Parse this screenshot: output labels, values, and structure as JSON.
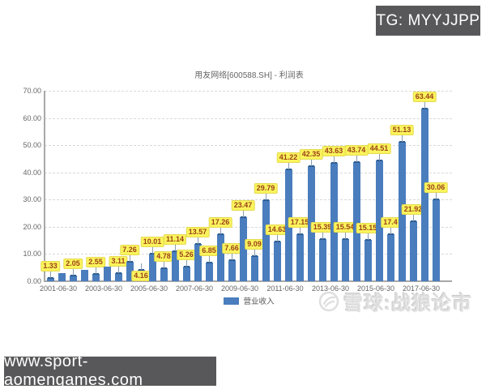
{
  "overlays": {
    "top_right_badge": "TG: MYYJJPP",
    "bottom_left_badge": "www.sport-aomengames.com",
    "watermark_text": "雪球:战狼论市"
  },
  "chart_data": {
    "type": "bar",
    "title": "用友网络[600588.SH] - 利润表",
    "series_name": "营业收入",
    "legend": [
      "营业收入"
    ],
    "legend_position": "bottom-center",
    "grid": "horizontal-dashed",
    "ylim": [
      0,
      70
    ],
    "yticks": [
      "0.00",
      "10.00",
      "20.00",
      "30.00",
      "40.00",
      "50.00",
      "60.00",
      "70.00"
    ],
    "xticks": [
      "2001-06-30",
      "2003-06-30",
      "2005-06-30",
      "2007-06-30",
      "2009-06-30",
      "2011-06-30",
      "2013-06-30",
      "2015-06-30",
      "2017-06-30"
    ],
    "xtick_every_n_bars": 4,
    "colors": {
      "bar": "#4a7dbd",
      "label_bg": "#faf45c",
      "label_text": "#9c4119"
    },
    "points": [
      {
        "x": "2001-06-30",
        "value": 1.33,
        "label": "1.33"
      },
      {
        "x": "2001-12-31",
        "value": 3.1,
        "label": "",
        "estimated": true
      },
      {
        "x": "2002-06-30",
        "value": 2.05,
        "label": "2.05"
      },
      {
        "x": "2002-12-31",
        "value": 4.3,
        "label": "",
        "estimated": true
      },
      {
        "x": "2003-06-30",
        "value": 2.55,
        "label": "2.55"
      },
      {
        "x": "2003-12-31",
        "value": 5.3,
        "label": "",
        "estimated": true
      },
      {
        "x": "2004-06-30",
        "value": 3.11,
        "label": "3.11"
      },
      {
        "x": "2004-12-31",
        "value": 7.26,
        "label": "7.26"
      },
      {
        "x": "2005-06-30",
        "value": 4.16,
        "label": "4.16",
        "label_position": "bottom"
      },
      {
        "x": "2005-12-31",
        "value": 10.01,
        "label": "10.01"
      },
      {
        "x": "2006-06-30",
        "value": 4.78,
        "label": "4.78"
      },
      {
        "x": "2006-12-31",
        "value": 11.14,
        "label": "11.14"
      },
      {
        "x": "2007-06-30",
        "value": 5.26,
        "label": "5.26"
      },
      {
        "x": "2007-12-31",
        "value": 13.57,
        "label": "13.57"
      },
      {
        "x": "2008-06-30",
        "value": 6.85,
        "label": "6.85"
      },
      {
        "x": "2008-12-31",
        "value": 17.26,
        "label": "17.26"
      },
      {
        "x": "2009-06-30",
        "value": 7.66,
        "label": "7.66"
      },
      {
        "x": "2009-12-31",
        "value": 23.47,
        "label": "23.47"
      },
      {
        "x": "2010-06-30",
        "value": 9.09,
        "label": "9.09"
      },
      {
        "x": "2010-12-31",
        "value": 29.79,
        "label": "29.79"
      },
      {
        "x": "2011-06-30",
        "value": 14.63,
        "label": "14.63"
      },
      {
        "x": "2011-12-31",
        "value": 41.22,
        "label": "41.22"
      },
      {
        "x": "2012-06-30",
        "value": 17.15,
        "label": "17.15"
      },
      {
        "x": "2012-12-31",
        "value": 42.35,
        "label": "42.35"
      },
      {
        "x": "2013-06-30",
        "value": 15.39,
        "label": "15.39"
      },
      {
        "x": "2013-12-31",
        "value": 43.63,
        "label": "43.63"
      },
      {
        "x": "2014-06-30",
        "value": 15.54,
        "label": "15.54"
      },
      {
        "x": "2014-12-31",
        "value": 43.74,
        "label": "43.74"
      },
      {
        "x": "2015-06-30",
        "value": 15.15,
        "label": "15.15"
      },
      {
        "x": "2015-12-31",
        "value": 44.51,
        "label": "44.51"
      },
      {
        "x": "2016-06-30",
        "value": 17.4,
        "label": "17.4"
      },
      {
        "x": "2016-12-31",
        "value": 51.13,
        "label": "51.13"
      },
      {
        "x": "2017-06-30",
        "value": 21.92,
        "label": "21.92"
      },
      {
        "x": "2017-12-31",
        "value": 63.44,
        "label": "63.44"
      },
      {
        "x": "2018-06-30",
        "value": 30.06,
        "label": "30.06"
      }
    ]
  }
}
